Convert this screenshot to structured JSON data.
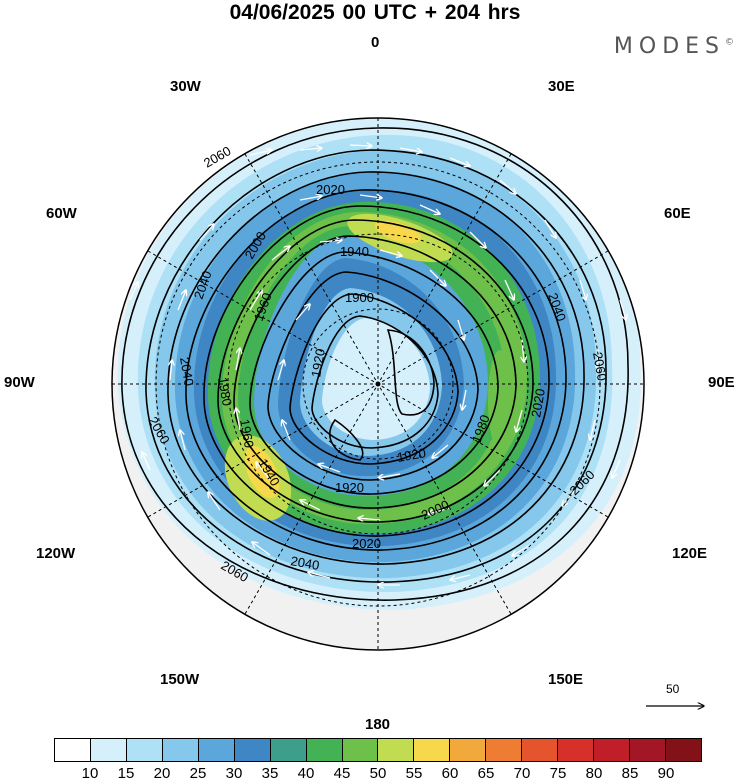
{
  "title": "04/06/2025  00 UTC  + 204 hrs",
  "brand": "MODES",
  "brand_mark": "©",
  "longitudes": {
    "top": "0",
    "top_right": "30E",
    "right_upper": "60E",
    "right": "90E",
    "right_lower": "120E",
    "bottom_right": "150E",
    "bottom": "180",
    "bottom_left": "150W",
    "left_lower": "120W",
    "left": "90W",
    "left_upper": "60W",
    "top_left": "30W"
  },
  "reference_vector": "50",
  "colorbar": {
    "colors": [
      "#ffffff",
      "#d6f0fb",
      "#aee0f6",
      "#86c7ec",
      "#5ba7db",
      "#3f86c4",
      "#3d9e8c",
      "#43b254",
      "#6dc04a",
      "#c2dc52",
      "#f6d84a",
      "#f2a93b",
      "#ee7d33",
      "#e5542c",
      "#d7302a",
      "#c01f2a",
      "#a21626",
      "#821118"
    ],
    "ticks": [
      "10",
      "15",
      "20",
      "25",
      "30",
      "35",
      "40",
      "45",
      "50",
      "55",
      "60",
      "65",
      "70",
      "75",
      "80",
      "85",
      "90"
    ]
  },
  "contours": {
    "labels": [
      "2060",
      "2060",
      "2060",
      "2060",
      "2060",
      "2040",
      "2040",
      "2040",
      "2040",
      "2020",
      "2020",
      "2020",
      "2000",
      "2000",
      "1980",
      "1980",
      "1960",
      "1960",
      "1940",
      "1940",
      "1920",
      "1920",
      "1920",
      "1900"
    ]
  },
  "chart_data": {
    "type": "map",
    "projection": "south polar stereographic",
    "field": "wind speed (shaded) with geopotential height contours and wind vectors",
    "colorbar_ticks": [
      10,
      15,
      20,
      25,
      30,
      35,
      40,
      45,
      50,
      55,
      60,
      65,
      70,
      75,
      80,
      85,
      90
    ],
    "contour_levels": [
      1900,
      1920,
      1940,
      1960,
      1980,
      2000,
      2020,
      2040,
      2060
    ],
    "reference_vector": 50
  }
}
